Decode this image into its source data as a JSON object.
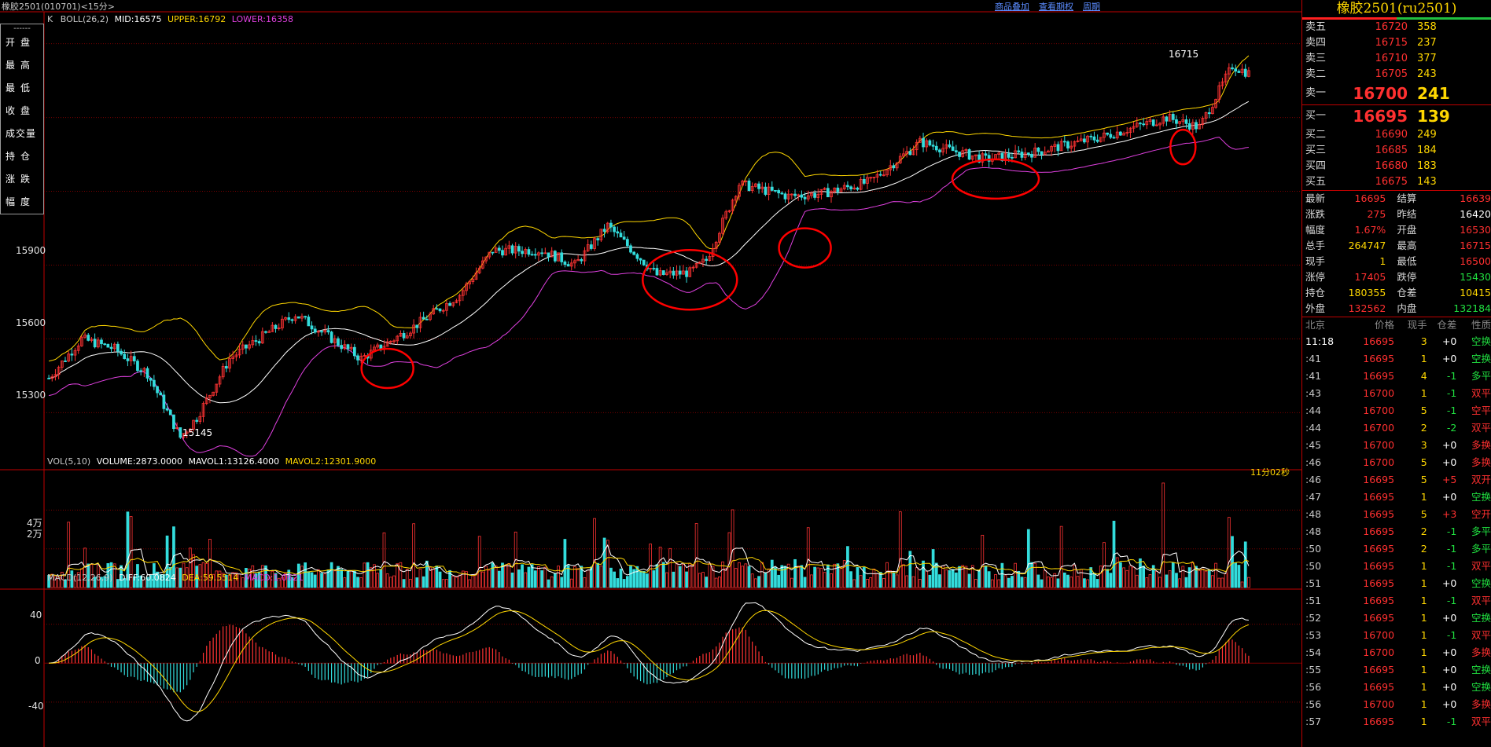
{
  "header": {
    "title": "橡胶2501(010701)<15分>",
    "links": [
      "商品叠加",
      "查看期权",
      "周期"
    ]
  },
  "left_info": {
    "dash": "------",
    "rows": [
      "开盘",
      "最高",
      "最低",
      "收盘",
      "成交量",
      "持仓",
      "涨跌",
      "幅度"
    ]
  },
  "price_panel": {
    "label_k": "K",
    "label_boll": "BOLL(26,2)",
    "label_mid": "MID:16575",
    "label_upper": "UPPER:16792",
    "label_lower": "LOWER:16358",
    "y_ticks": [
      "15900",
      "15600",
      "15300"
    ],
    "high_label": "16715",
    "low_label": "15145",
    "timer": "11分02秒"
  },
  "volume_panel": {
    "label_vol": "VOL(5,10)",
    "label_volume": "VOLUME:2873.0000",
    "label_mavol1": "MAVOL1:13126.4000",
    "label_mavol2": "MAVOL2:12301.9000",
    "y_ticks": [
      "4万",
      "2万"
    ]
  },
  "macd_panel": {
    "label_macd": "MACD(12,26,9)",
    "label_diff": "DIFF:60.0824",
    "label_dea": "DEA:59.5514",
    "label_macdv": "MACD:1.0621",
    "y_ticks": [
      "40",
      "0",
      "-40"
    ]
  },
  "chart_data": {
    "type": "candlestick",
    "price_range": [
      15100,
      16850
    ],
    "price_ticks": [
      15300,
      15600,
      15900
    ],
    "trend_anchors": [
      [
        0,
        15440
      ],
      [
        10,
        15600
      ],
      [
        20,
        15560
      ],
      [
        30,
        15460
      ],
      [
        40,
        15200
      ],
      [
        45,
        15280
      ],
      [
        55,
        15520
      ],
      [
        75,
        15700
      ],
      [
        95,
        15520
      ],
      [
        110,
        15640
      ],
      [
        125,
        15780
      ],
      [
        135,
        15960
      ],
      [
        150,
        15960
      ],
      [
        160,
        15900
      ],
      [
        170,
        16060
      ],
      [
        185,
        15860
      ],
      [
        195,
        15870
      ],
      [
        200,
        15920
      ],
      [
        210,
        16230
      ],
      [
        225,
        16180
      ],
      [
        235,
        16190
      ],
      [
        250,
        16240
      ],
      [
        265,
        16400
      ],
      [
        285,
        16330
      ],
      [
        300,
        16360
      ],
      [
        320,
        16420
      ],
      [
        340,
        16500
      ],
      [
        350,
        16460
      ],
      [
        360,
        16710
      ],
      [
        365,
        16680
      ]
    ],
    "circled_dips": [
      {
        "bar": 103,
        "price": 15480
      },
      {
        "bar": 195,
        "price": 15840
      },
      {
        "bar": 230,
        "price": 15970
      },
      {
        "bar": 288,
        "price": 16250
      },
      {
        "bar": 345,
        "price": 16380
      }
    ],
    "volume_range": [
      0,
      56000
    ],
    "volume_ticks": [
      20000,
      40000
    ],
    "macd_range": [
      -78,
      68
    ],
    "macd_ticks": [
      40,
      0,
      -40
    ],
    "colors": {
      "up": "#ff3333",
      "down": "#33dddd",
      "mid": "#ffffff",
      "upper": "#ffd700",
      "lower": "#e040e0",
      "circle": "#ff0000"
    }
  },
  "order_book": {
    "title": "橡胶2501(ru2501)",
    "asks": [
      {
        "name": "卖五",
        "price": "16720",
        "vol": "358"
      },
      {
        "name": "卖四",
        "price": "16715",
        "vol": "237"
      },
      {
        "name": "卖三",
        "price": "16710",
        "vol": "377"
      },
      {
        "name": "卖二",
        "price": "16705",
        "vol": "243"
      },
      {
        "name": "卖一",
        "price": "16700",
        "vol": "241"
      }
    ],
    "bids": [
      {
        "name": "买一",
        "price": "16695",
        "vol": "139"
      },
      {
        "name": "买二",
        "price": "16690",
        "vol": "249"
      },
      {
        "name": "买三",
        "price": "16685",
        "vol": "184"
      },
      {
        "name": "买四",
        "price": "16680",
        "vol": "183"
      },
      {
        "name": "买五",
        "price": "16675",
        "vol": "143"
      }
    ]
  },
  "stats": [
    {
      "l1": "最新",
      "v1": "16695",
      "c1": "#ff3030",
      "l2": "结算",
      "v2": "16639",
      "c2": "#ff3030"
    },
    {
      "l1": "涨跌",
      "v1": "275",
      "c1": "#ff3030",
      "l2": "昨结",
      "v2": "16420",
      "c2": "#ffffff"
    },
    {
      "l1": "幅度",
      "v1": "1.67%",
      "c1": "#ff3030",
      "l2": "开盘",
      "v2": "16530",
      "c2": "#ff3030"
    },
    {
      "l1": "总手",
      "v1": "264747",
      "c1": "#ffd700",
      "l2": "最高",
      "v2": "16715",
      "c2": "#ff3030"
    },
    {
      "l1": "现手",
      "v1": "1",
      "c1": "#ffd700",
      "l2": "最低",
      "v2": "16500",
      "c2": "#ff3030"
    },
    {
      "l1": "涨停",
      "v1": "17405",
      "c1": "#ff3030",
      "l2": "跌停",
      "v2": "15430",
      "c2": "#20e040"
    },
    {
      "l1": "持仓",
      "v1": "180355",
      "c1": "#ffd700",
      "l2": "仓差",
      "v2": "10415",
      "c2": "#ffd700"
    },
    {
      "l1": "外盘",
      "v1": "132562",
      "c1": "#ff3030",
      "l2": "内盘",
      "v2": "132184",
      "c2": "#20e040"
    }
  ],
  "ticks": {
    "headers": [
      "北京",
      "价格",
      "现手",
      "仓差",
      "性质"
    ],
    "rows": [
      {
        "t": "11:18",
        "p": "16695",
        "v": "3",
        "d": "+0",
        "k": "空换"
      },
      {
        "t": ":41",
        "p": "16695",
        "v": "1",
        "d": "+0",
        "k": "空换"
      },
      {
        "t": ":41",
        "p": "16695",
        "v": "4",
        "d": "-1",
        "k": "多平"
      },
      {
        "t": ":43",
        "p": "16700",
        "v": "1",
        "d": "-1",
        "k": "双平"
      },
      {
        "t": ":44",
        "p": "16700",
        "v": "5",
        "d": "-1",
        "k": "空平"
      },
      {
        "t": ":44",
        "p": "16700",
        "v": "2",
        "d": "-2",
        "k": "双平"
      },
      {
        "t": ":45",
        "p": "16700",
        "v": "3",
        "d": "+0",
        "k": "多换"
      },
      {
        "t": ":46",
        "p": "16700",
        "v": "5",
        "d": "+0",
        "k": "多换"
      },
      {
        "t": ":46",
        "p": "16695",
        "v": "5",
        "d": "+5",
        "k": "双开"
      },
      {
        "t": ":47",
        "p": "16695",
        "v": "1",
        "d": "+0",
        "k": "空换"
      },
      {
        "t": ":48",
        "p": "16695",
        "v": "5",
        "d": "+3",
        "k": "空开"
      },
      {
        "t": ":48",
        "p": "16695",
        "v": "2",
        "d": "-1",
        "k": "多平"
      },
      {
        "t": ":50",
        "p": "16695",
        "v": "2",
        "d": "-1",
        "k": "多平"
      },
      {
        "t": ":50",
        "p": "16695",
        "v": "1",
        "d": "-1",
        "k": "双平"
      },
      {
        "t": ":51",
        "p": "16695",
        "v": "1",
        "d": "+0",
        "k": "空换"
      },
      {
        "t": ":51",
        "p": "16695",
        "v": "1",
        "d": "-1",
        "k": "双平"
      },
      {
        "t": ":52",
        "p": "16695",
        "v": "1",
        "d": "+0",
        "k": "空换"
      },
      {
        "t": ":53",
        "p": "16700",
        "v": "1",
        "d": "-1",
        "k": "双平"
      },
      {
        "t": ":54",
        "p": "16700",
        "v": "1",
        "d": "+0",
        "k": "多换"
      },
      {
        "t": ":55",
        "p": "16695",
        "v": "1",
        "d": "+0",
        "k": "空换"
      },
      {
        "t": ":56",
        "p": "16695",
        "v": "1",
        "d": "+0",
        "k": "空换"
      },
      {
        "t": ":56",
        "p": "16700",
        "v": "1",
        "d": "+0",
        "k": "多换"
      },
      {
        "t": ":57",
        "p": "16695",
        "v": "1",
        "d": "-1",
        "k": "双平"
      }
    ]
  }
}
